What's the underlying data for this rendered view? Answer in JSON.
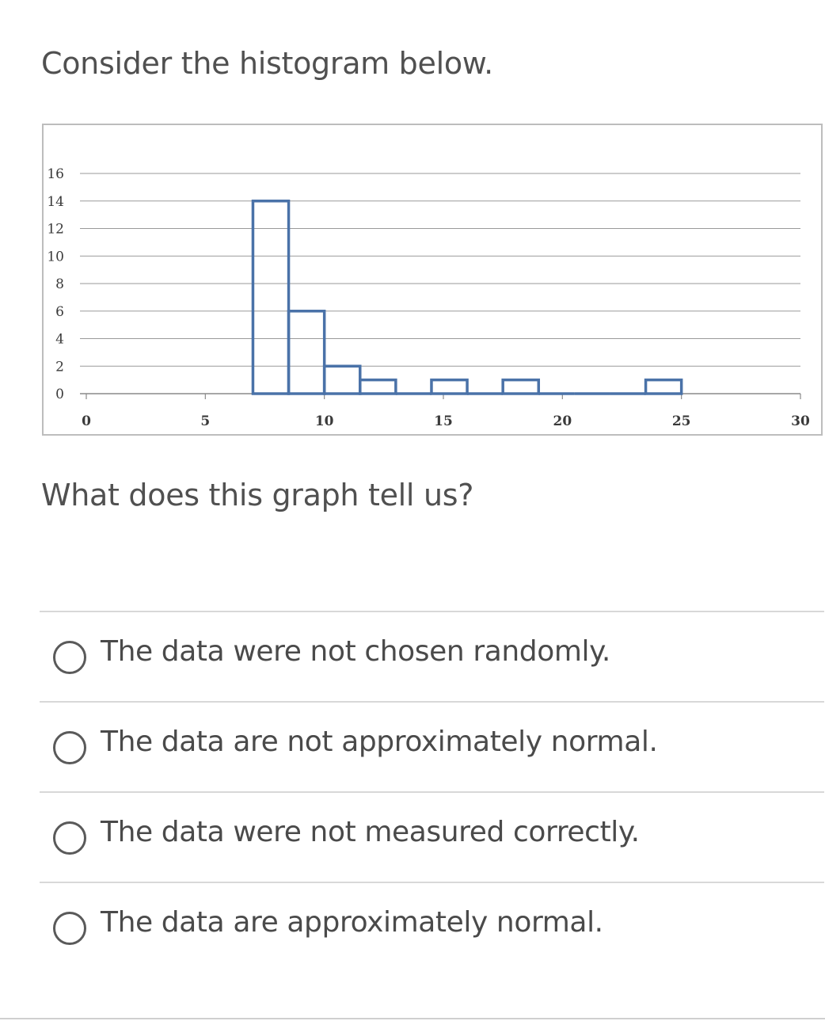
{
  "title": "Consider the histogram below.",
  "question": "What does this graph tell us?",
  "options": [
    {
      "label": "The data were not chosen randomly.",
      "selected": false
    },
    {
      "label": "The data are not approximately normal.",
      "selected": false
    },
    {
      "label": "The data were not measured correctly.",
      "selected": false
    },
    {
      "label": "The data are approximately normal.",
      "selected": false
    }
  ],
  "chart_data": {
    "type": "bar",
    "title": "",
    "xlabel": "",
    "ylabel": "",
    "xlim": [
      0,
      30
    ],
    "ylim": [
      0,
      16
    ],
    "x_ticks": [
      0,
      5,
      10,
      15,
      20,
      25,
      30
    ],
    "y_ticks": [
      0,
      2,
      4,
      6,
      8,
      10,
      12,
      14,
      16
    ],
    "grid": true,
    "bins": [
      {
        "start": 7.0,
        "end": 8.5,
        "count": 14
      },
      {
        "start": 8.5,
        "end": 10.0,
        "count": 6
      },
      {
        "start": 10.0,
        "end": 11.5,
        "count": 2
      },
      {
        "start": 11.5,
        "end": 13.0,
        "count": 1
      },
      {
        "start": 13.0,
        "end": 14.5,
        "count": 0
      },
      {
        "start": 14.5,
        "end": 16.0,
        "count": 1
      },
      {
        "start": 16.0,
        "end": 17.5,
        "count": 0
      },
      {
        "start": 17.5,
        "end": 19.0,
        "count": 1
      },
      {
        "start": 19.0,
        "end": 20.5,
        "count": 0
      },
      {
        "start": 20.5,
        "end": 22.0,
        "count": 0
      },
      {
        "start": 22.0,
        "end": 23.5,
        "count": 0
      },
      {
        "start": 23.5,
        "end": 25.0,
        "count": 1
      }
    ],
    "colors": {
      "bar_stroke": "#4a72a8",
      "grid": "#9a9a9a",
      "frame": "#bdbdbd"
    }
  }
}
